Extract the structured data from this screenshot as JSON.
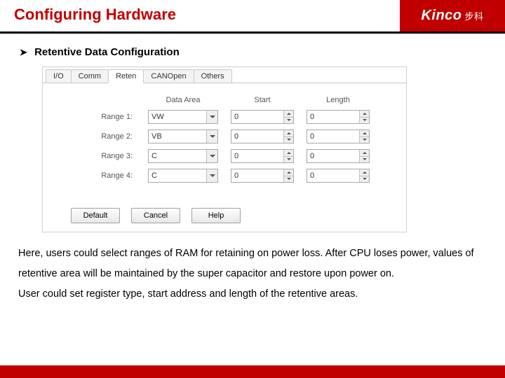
{
  "page": {
    "title": "Configuring Hardware",
    "title_color": "#c00000",
    "logo_text": "Kinco",
    "logo_cn": "步科",
    "logo_bg": "#c00000"
  },
  "section": {
    "bullet": "➤",
    "title": "Retentive Data Configuration"
  },
  "dialog": {
    "tabs": [
      {
        "label": "I/O",
        "active": false
      },
      {
        "label": "Comm",
        "active": false
      },
      {
        "label": "Reten",
        "active": true
      },
      {
        "label": "CANOpen",
        "active": false
      },
      {
        "label": "Others",
        "active": false
      }
    ],
    "columns": {
      "data_area": "Data Area",
      "start": "Start",
      "length": "Length"
    },
    "rows": [
      {
        "label": "Range 1:",
        "area": "VW",
        "start": "0",
        "length": "0"
      },
      {
        "label": "Range 2:",
        "area": "VB",
        "start": "0",
        "length": "0"
      },
      {
        "label": "Range 3:",
        "area": "C",
        "start": "0",
        "length": "0"
      },
      {
        "label": "Range 4:",
        "area": "C",
        "start": "0",
        "length": "0"
      }
    ],
    "buttons": {
      "default": "Default",
      "cancel": "Cancel",
      "help": "Help"
    }
  },
  "description": {
    "p1": "Here, users could select ranges of RAM for retaining on power loss. After CPU loses power, values of retentive area will be maintained by the super capacitor and restore upon power on.",
    "p2": "User could set register type, start address and length of the retentive areas."
  },
  "colors": {
    "accent": "#c00000",
    "border": "#c8c8c8",
    "text": "#333333"
  }
}
